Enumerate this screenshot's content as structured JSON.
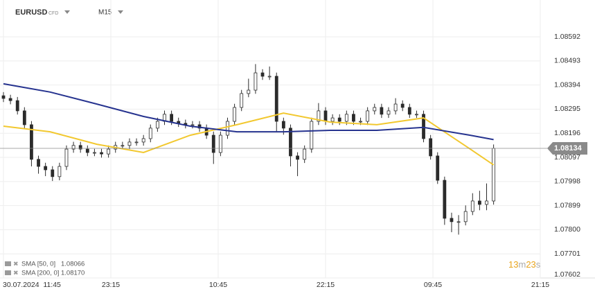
{
  "header": {
    "symbol": "EURUSD",
    "symbol_type": "CFD",
    "interval": "M15"
  },
  "chart_data": {
    "type": "candlestick",
    "x": [
      0,
      0.75,
      1.5,
      2.25,
      3,
      3.75,
      4.5,
      5.25,
      6,
      6.75,
      7.5,
      8.25,
      9,
      9.75,
      10.5,
      11.25,
      12,
      12.75,
      13.5,
      14.25,
      15,
      15.75,
      16.5,
      17.25,
      18,
      18.75,
      19.5,
      20.25,
      21,
      21.75,
      22.5,
      23.25,
      24,
      24.75,
      25.5,
      26.25,
      27,
      27.75,
      28.5,
      29.25,
      30,
      30.75,
      31.5,
      32.25,
      33,
      33.75,
      34.5,
      35.25,
      36,
      36.75,
      37.5,
      38.25,
      39,
      39.75,
      40.5,
      41.25,
      42,
      42.75,
      43.5,
      44.25,
      45,
      45.75,
      46.5,
      47.25,
      48,
      48.75,
      49.5,
      50.25,
      51,
      51.75,
      52.5
    ],
    "open": [
      1.0835,
      1.08339,
      1.0833,
      1.08288,
      1.08231,
      1.08089,
      1.0806,
      1.08046,
      1.08018,
      1.0806,
      1.08131,
      1.08146,
      1.08131,
      1.08117,
      1.08117,
      1.08111,
      1.08131,
      1.08146,
      1.08146,
      1.0816,
      1.0816,
      1.08174,
      1.08217,
      1.08245,
      1.08274,
      1.08245,
      1.08237,
      1.08231,
      1.08231,
      1.08217,
      1.08188,
      1.08117,
      1.08188,
      1.08245,
      1.08302,
      1.08359,
      1.08373,
      1.08444,
      1.0843,
      1.0843,
      1.08245,
      1.08217,
      1.08103,
      1.08089,
      1.08131,
      1.08245,
      1.08288,
      1.08245,
      1.08259,
      1.08245,
      1.08274,
      1.08245,
      1.08245,
      1.08288,
      1.08302,
      1.08274,
      1.08288,
      1.08316,
      1.08302,
      1.08274,
      1.08274,
      1.08174,
      1.08103,
      1.08003,
      1.07847,
      1.07833,
      1.07833,
      1.07875,
      1.07918,
      1.07904,
      1.07918
    ],
    "high": [
      1.08365,
      1.08354,
      1.08345,
      1.08303,
      1.08246,
      1.08104,
      1.08075,
      1.08061,
      1.08075,
      1.08146,
      1.08161,
      1.08161,
      1.08146,
      1.08132,
      1.08132,
      1.08146,
      1.08161,
      1.08161,
      1.08175,
      1.08175,
      1.08189,
      1.08232,
      1.0826,
      1.08289,
      1.08289,
      1.0826,
      1.08252,
      1.08246,
      1.08246,
      1.08232,
      1.08203,
      1.08203,
      1.0826,
      1.08317,
      1.08374,
      1.0842,
      1.0848,
      1.08459,
      1.0847,
      1.08445,
      1.0826,
      1.08232,
      1.08118,
      1.08146,
      1.0826,
      1.0832,
      1.08303,
      1.08274,
      1.08274,
      1.08289,
      1.08289,
      1.0826,
      1.08303,
      1.08317,
      1.08317,
      1.08303,
      1.0834,
      1.08331,
      1.08317,
      1.08289,
      1.08289,
      1.08189,
      1.08118,
      1.08018,
      1.0787,
      1.0786,
      1.079,
      1.0795,
      1.0796,
      1.0799,
      1.0815
    ],
    "low": [
      1.08324,
      1.08315,
      1.08273,
      1.08216,
      1.0806,
      1.0803,
      1.0802,
      1.08,
      1.08003,
      1.08045,
      1.08116,
      1.08116,
      1.08102,
      1.08102,
      1.08096,
      1.08096,
      1.08116,
      1.08131,
      1.08131,
      1.08145,
      1.08145,
      1.08159,
      1.08202,
      1.0823,
      1.0823,
      1.08222,
      1.08216,
      1.08216,
      1.08202,
      1.08173,
      1.0807,
      1.08102,
      1.08173,
      1.0823,
      1.08287,
      1.08344,
      1.08358,
      1.08415,
      1.08415,
      1.082,
      1.0819,
      1.0806,
      1.0802,
      1.08074,
      1.08116,
      1.0823,
      1.0823,
      1.0823,
      1.0823,
      1.0823,
      1.0823,
      1.0823,
      1.0823,
      1.08273,
      1.08259,
      1.08259,
      1.08273,
      1.08287,
      1.08259,
      1.08259,
      1.08159,
      1.08088,
      1.07988,
      1.0782,
      1.0779,
      1.0778,
      1.07818,
      1.0786,
      1.0788,
      1.0788,
      1.07903
    ],
    "close": [
      1.08339,
      1.0833,
      1.08288,
      1.08231,
      1.08089,
      1.0806,
      1.08046,
      1.08018,
      1.0806,
      1.08131,
      1.08146,
      1.08131,
      1.08117,
      1.08117,
      1.08111,
      1.08131,
      1.08146,
      1.08146,
      1.0816,
      1.0816,
      1.08174,
      1.08217,
      1.08245,
      1.08274,
      1.08245,
      1.08237,
      1.08231,
      1.08231,
      1.08217,
      1.08188,
      1.08117,
      1.08188,
      1.08245,
      1.08302,
      1.08359,
      1.08373,
      1.08444,
      1.0843,
      1.0843,
      1.08245,
      1.08217,
      1.08103,
      1.08089,
      1.08131,
      1.08245,
      1.08288,
      1.08245,
      1.08259,
      1.08245,
      1.08274,
      1.08245,
      1.08245,
      1.08288,
      1.08302,
      1.08274,
      1.08288,
      1.08316,
      1.08302,
      1.08274,
      1.08274,
      1.08174,
      1.08103,
      1.08003,
      1.07847,
      1.07833,
      1.07833,
      1.07875,
      1.07918,
      1.07904,
      1.07918,
      1.08134
    ],
    "up_color": "#ffffff",
    "down_color": "#2b2b2b",
    "wick_color": "#2b2b2b",
    "lines": [
      {
        "name": "SMA [50, 0]",
        "legend_value": "1.08066",
        "color": "#f2c82f",
        "x": [
          0,
          5,
          10,
          15,
          20,
          25,
          30,
          35,
          40,
          45,
          50,
          52.5
        ],
        "values": [
          1.08225,
          1.08202,
          1.08151,
          1.08117,
          1.08188,
          1.08231,
          1.08279,
          1.08242,
          1.08231,
          1.08259,
          1.08131,
          1.08066
        ]
      },
      {
        "name": "SMA [200, 0]",
        "legend_value": "1.08170",
        "color": "#26338f",
        "x": [
          0,
          5,
          10,
          15,
          20,
          25,
          30,
          35,
          40,
          45,
          50,
          52.5
        ],
        "values": [
          1.08399,
          1.08365,
          1.08316,
          1.08265,
          1.08225,
          1.08202,
          1.08202,
          1.08208,
          1.08208,
          1.0822,
          1.08188,
          1.0817
        ]
      }
    ],
    "last_price": 1.08134,
    "last_price_color": "#8a8a8a",
    "countdown": [
      "13",
      "m",
      "23",
      "s"
    ],
    "xlim": [
      0,
      57.5
    ],
    "xticks": [
      {
        "value": 0,
        "label": "30.07.2024  11:45"
      },
      {
        "value": 11.5,
        "label": "23:15"
      },
      {
        "value": 23,
        "label": "10:45"
      },
      {
        "value": 34.5,
        "label": "22:15"
      },
      {
        "value": 46,
        "label": "09:45"
      },
      {
        "value": 57.5,
        "label": "21:15"
      }
    ],
    "ylim": [
      1.07602,
      1.08743
    ],
    "yticks": [
      1.08592,
      1.08493,
      1.08394,
      1.08295,
      1.08196,
      1.08097,
      1.07998,
      1.07899,
      {
        "value": 1.078,
        "label": "1.07800"
      },
      1.07701,
      1.07602
    ],
    "grid": true
  }
}
